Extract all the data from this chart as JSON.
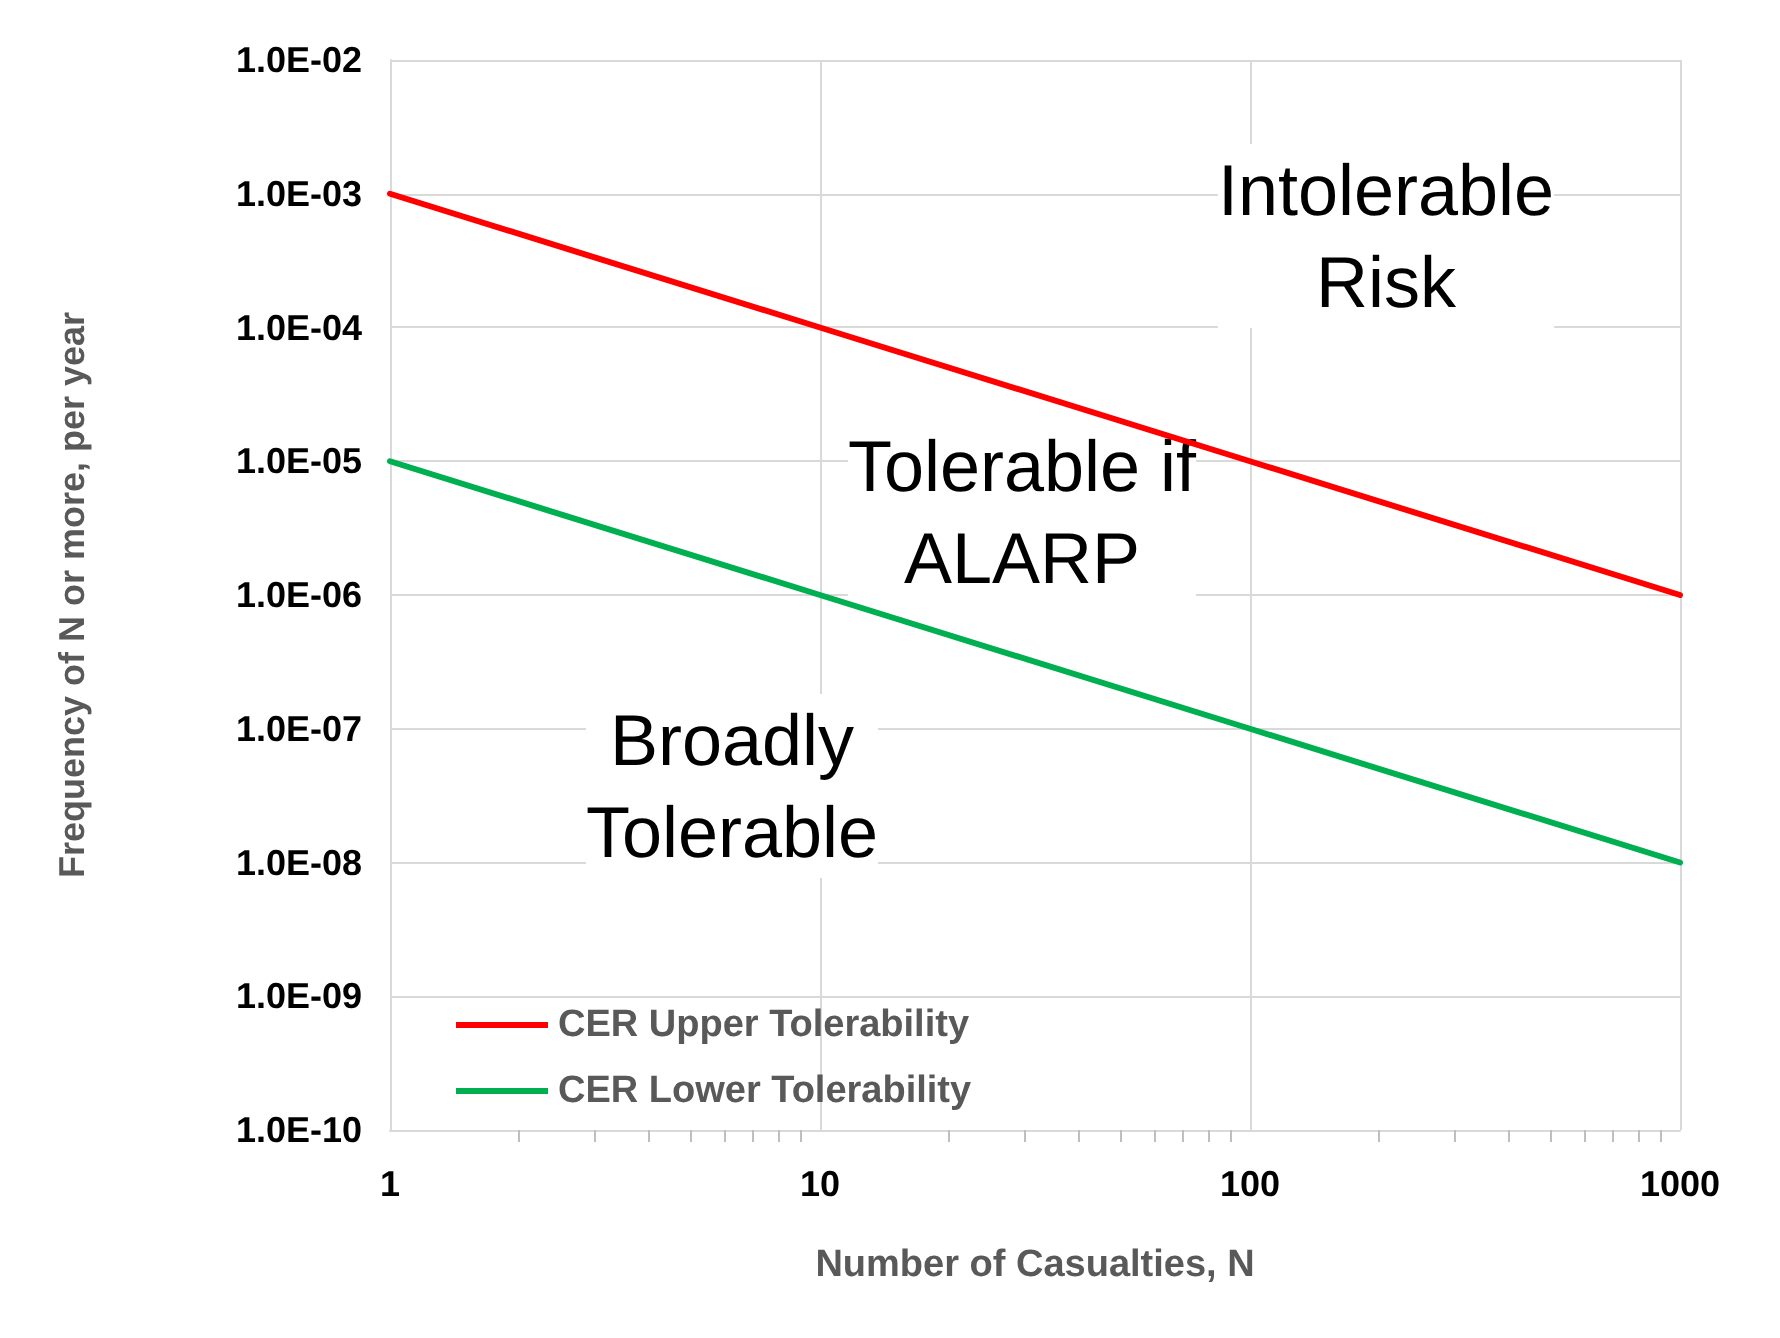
{
  "chart_data": {
    "type": "line",
    "xlabel": "Number of Casualties, N",
    "ylabel": "Frequency of N or more, per year",
    "x": [
      1,
      10,
      100,
      1000
    ],
    "series": [
      {
        "name": "CER Upper Tolerability",
        "color": "#ff0000",
        "values": [
          0.001,
          0.0001,
          1e-05,
          1e-06
        ]
      },
      {
        "name": "CER Lower Tolerability",
        "color": "#00b050",
        "values": [
          1e-05,
          1e-06,
          1e-07,
          1e-08
        ]
      }
    ],
    "log": "xy",
    "xlim": [
      1,
      1000
    ],
    "xticks": [
      1,
      10,
      100,
      1000
    ],
    "ylim": [
      1e-10,
      0.01
    ],
    "yticks": [
      {
        "value": 1e-10,
        "label": "1.0E-10"
      },
      {
        "value": 1e-09,
        "label": "1.0E-09"
      },
      {
        "value": 1e-08,
        "label": "1.0E-08"
      },
      {
        "value": 1e-07,
        "label": "1.0E-07"
      },
      {
        "value": 1e-06,
        "label": "1.0E-06"
      },
      {
        "value": 1e-05,
        "label": "1.0E-05"
      },
      {
        "value": 0.0001,
        "label": "1.0E-04"
      },
      {
        "value": 0.001,
        "label": "1.0E-03"
      },
      {
        "value": 0.01,
        "label": "1.0E-02"
      }
    ],
    "annotations": [
      "Intolerable\nRisk",
      "Tolerable if\nALARP",
      "Broadly\nTolerable"
    ],
    "grid": true,
    "legend": "bottom left",
    "marker": "none",
    "line_style": "solid"
  }
}
